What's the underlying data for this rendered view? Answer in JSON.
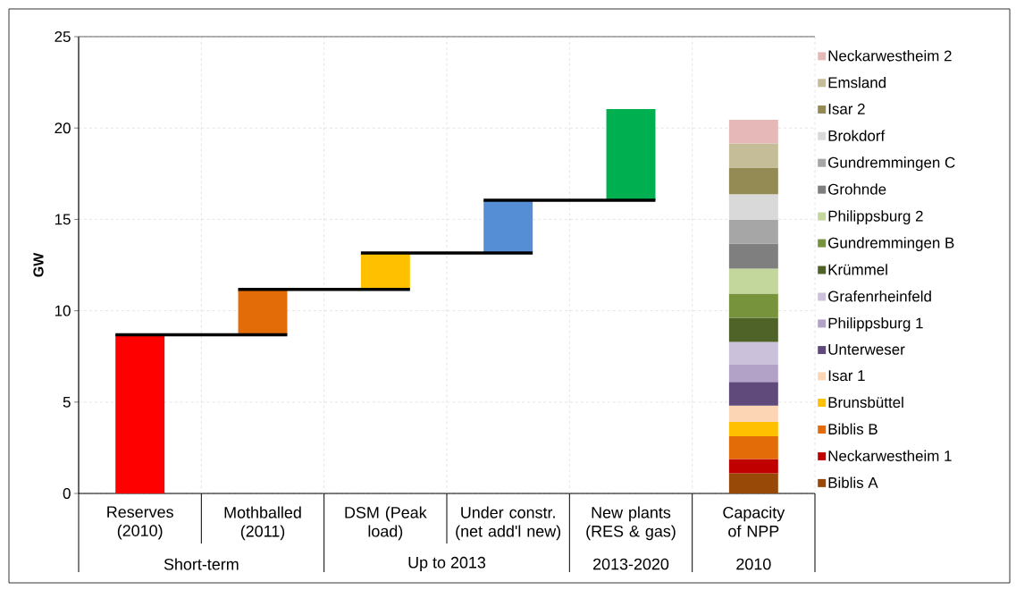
{
  "chart_data": {
    "type": "bar",
    "stacked": true,
    "categories": [
      "Reserves (2010)",
      "Mothballed (2011)",
      "DSM (Peak load)",
      "Under constr. (net add'l new)",
      "New plants (RES & gas)",
      "Capacity of NPP"
    ],
    "ylabel": "GW",
    "ylim": [
      0,
      25
    ],
    "yticks": [
      0,
      5,
      10,
      15,
      20,
      25
    ],
    "grid": true,
    "legend": "right",
    "annotations": [
      "Short-term",
      "Up to 2013",
      "2013-2020",
      "2010"
    ],
    "series": [
      {
        "values": [
          8.68,
          2.49,
          1.99,
          2.89,
          4.99,
          null
        ],
        "base": [
          0,
          8.68,
          11.17,
          13.16,
          16.05,
          null
        ],
        "colors": [
          "#ff0000",
          "#e36c09",
          "#ffc000",
          "#558ed5",
          "#00b050",
          null
        ]
      },
      {
        "name": "Biblis A",
        "color": "#984807",
        "values": [
          null,
          null,
          null,
          null,
          null,
          1.1
        ]
      },
      {
        "name": "Neckarwestheim 1",
        "color": "#c00000",
        "values": [
          null,
          null,
          null,
          null,
          null,
          0.78
        ]
      },
      {
        "name": "Biblis B",
        "color": "#e36c09",
        "values": [
          null,
          null,
          null,
          null,
          null,
          1.25
        ]
      },
      {
        "name": "Brunsbüttel",
        "color": "#ffc000",
        "values": [
          null,
          null,
          null,
          null,
          null,
          0.79
        ]
      },
      {
        "name": "Isar 1",
        "color": "#fcd5b5",
        "values": [
          null,
          null,
          null,
          null,
          null,
          0.89
        ]
      },
      {
        "name": "Unterweser",
        "color": "#604a7b",
        "values": [
          null,
          null,
          null,
          null,
          null,
          1.29
        ]
      },
      {
        "name": "Philippsburg 1",
        "color": "#b3a2c7",
        "values": [
          null,
          null,
          null,
          null,
          null,
          0.94
        ]
      },
      {
        "name": "Grafenrheinfeld",
        "color": "#ccc1da",
        "values": [
          null,
          null,
          null,
          null,
          null,
          1.25
        ]
      },
      {
        "name": "Krümmel",
        "color": "#4f6228",
        "values": [
          null,
          null,
          null,
          null,
          null,
          1.32
        ]
      },
      {
        "name": "Gundremmingen B",
        "color": "#77933c",
        "values": [
          null,
          null,
          null,
          null,
          null,
          1.32
        ]
      },
      {
        "name": "Philippsburg 2",
        "color": "#c3d69b",
        "values": [
          null,
          null,
          null,
          null,
          null,
          1.37
        ]
      },
      {
        "name": "Grohnde",
        "color": "#7f7f7f",
        "values": [
          null,
          null,
          null,
          null,
          null,
          1.37
        ]
      },
      {
        "name": "Gundremmingen C",
        "color": "#a6a6a6",
        "values": [
          null,
          null,
          null,
          null,
          null,
          1.3
        ]
      },
      {
        "name": "Brokdorf",
        "color": "#d9d9d9",
        "values": [
          null,
          null,
          null,
          null,
          null,
          1.41
        ]
      },
      {
        "name": "Isar 2",
        "color": "#948a54",
        "values": [
          null,
          null,
          null,
          null,
          null,
          1.45
        ]
      },
      {
        "name": "Emsland",
        "color": "#c4bd97",
        "values": [
          null,
          null,
          null,
          null,
          null,
          1.32
        ]
      },
      {
        "name": "Neckarwestheim 2",
        "color": "#e6b9b8",
        "values": [
          null,
          null,
          null,
          null,
          null,
          1.3
        ]
      }
    ]
  }
}
